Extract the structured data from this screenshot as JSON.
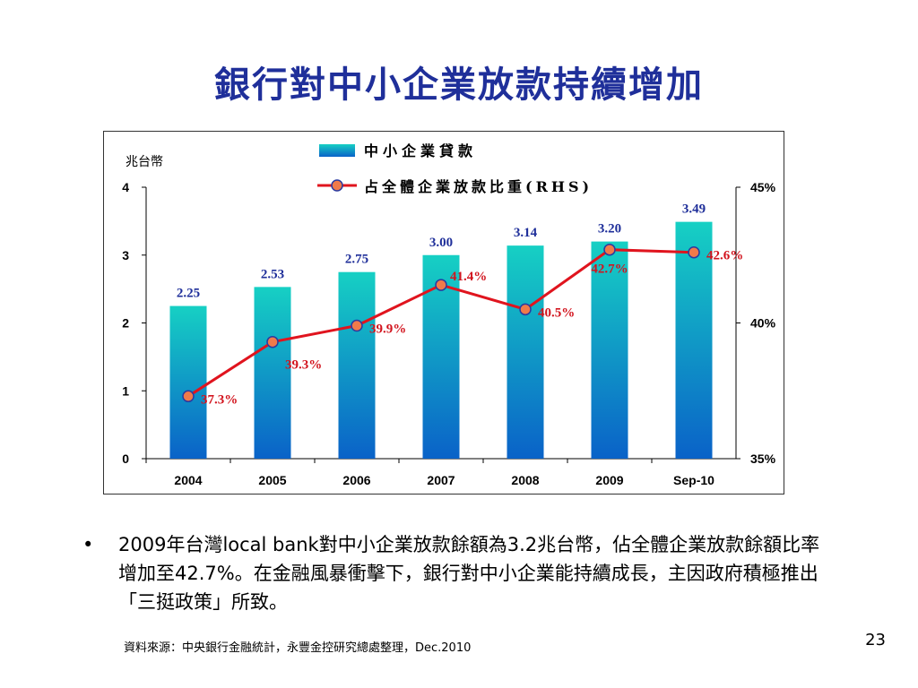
{
  "slide": {
    "title": "銀行對中小企業放款持續增加",
    "bullet_symbol": "•",
    "bullet_text": "2009年台灣local bank對中小企業放款餘額為3.2兆台幣，佔全體企業放款餘額比率增加至42.7%。在金融風暴衝擊下，銀行對中小企業能持續成長，主因政府積極推出「三挺政策」所致。",
    "source": "資料來源：中央銀行金融統計，永豐金控研究總處整理，Dec.2010",
    "page_number": "23"
  },
  "chart_data": {
    "type": "bar",
    "categories": [
      "2004",
      "2005",
      "2006",
      "2007",
      "2008",
      "2009",
      "Sep-10"
    ],
    "left_axis_unit": "兆台幣",
    "ylim": [
      0,
      4
    ],
    "y_ticks": [
      "0",
      "1",
      "2",
      "3",
      "4"
    ],
    "y2lim": [
      35,
      45
    ],
    "y2_ticks": [
      "35%",
      "40%",
      "45%"
    ],
    "series": [
      {
        "name": "中小企業貸款",
        "kind": "bar",
        "axis": "left",
        "values": [
          2.25,
          2.53,
          2.75,
          3.0,
          3.14,
          3.2,
          3.49
        ],
        "labels": [
          "2.25",
          "2.53",
          "2.75",
          "3.00",
          "3.14",
          "3.20",
          "3.49"
        ],
        "color_top": "#16d0c4",
        "color_bottom": "#0a62c8"
      },
      {
        "name": "占全體企業放款比重(RHS)",
        "kind": "line",
        "axis": "right",
        "values": [
          37.3,
          39.3,
          39.9,
          41.4,
          40.5,
          42.7,
          42.6
        ],
        "labels": [
          "37.3%",
          "39.3%",
          "39.9%",
          "41.4%",
          "40.5%",
          "42.7%",
          "42.6%"
        ],
        "line_color": "#e0141e",
        "marker_color": "#f07a4a",
        "marker_edge": "#2a3aa0"
      }
    ],
    "bar_label_color": "#1f2f9a",
    "line_label_color": "#d2141e",
    "legend_position": "top-center",
    "grid": false
  }
}
